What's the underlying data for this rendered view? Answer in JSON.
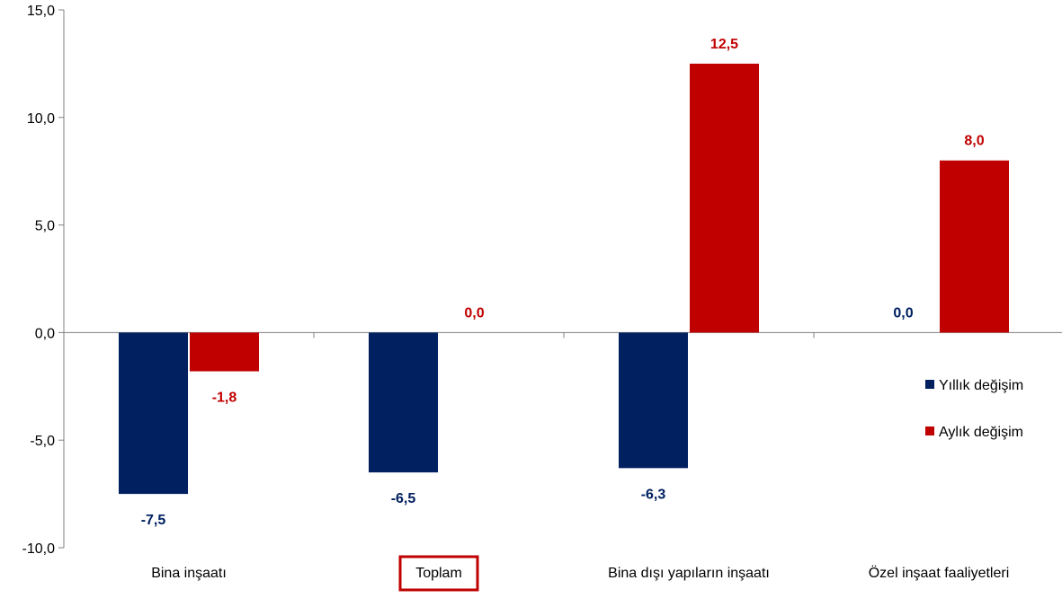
{
  "chart_data": {
    "type": "bar",
    "categories": [
      "Bina inşaatı",
      "Toplam",
      "Bina dışı yapıların inşaatı",
      "Özel inşaat faaliyetleri"
    ],
    "highlighted_category": "Toplam",
    "series": [
      {
        "name": "Yıllık değişim",
        "color": "#002060",
        "values": [
          -7.5,
          -6.5,
          -6.3,
          0.0
        ],
        "labels": [
          "-7,5",
          "-6,5",
          "-6,3",
          "0,0"
        ]
      },
      {
        "name": "Aylık değişim",
        "color": "#C00000",
        "values": [
          -1.8,
          0.0,
          12.5,
          8.0
        ],
        "labels": [
          "-1,8",
          "0,0",
          "12,5",
          "8,0"
        ]
      }
    ],
    "ylim": [
      -10,
      15
    ],
    "yticks": [
      -10,
      -5,
      0,
      5,
      10,
      15
    ],
    "ytick_labels": [
      "-10,0",
      "-5,0",
      "0,0",
      "5,0",
      "10,0",
      "15,0"
    ],
    "legend_position": "right",
    "grid": false,
    "title": "",
    "xlabel": "",
    "ylabel": ""
  }
}
